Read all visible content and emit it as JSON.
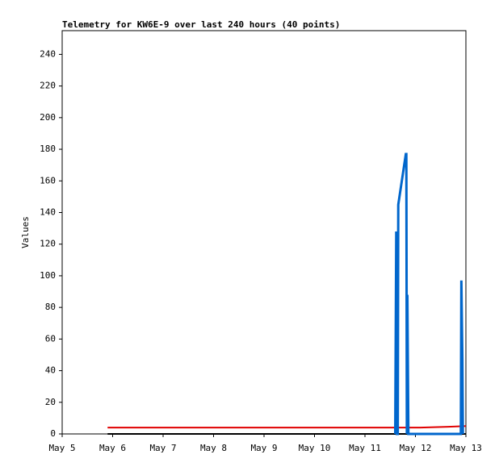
{
  "chart_data": {
    "type": "line",
    "title": "Telemetry for KW6E-9 over last 240 hours (40 points)",
    "y_label": "Values",
    "xlim": [
      5,
      13
    ],
    "xticks": [
      {
        "value": 5,
        "label": "May 5"
      },
      {
        "value": 6,
        "label": "May 6"
      },
      {
        "value": 7,
        "label": "May 7"
      },
      {
        "value": 8,
        "label": "May 8"
      },
      {
        "value": 9,
        "label": "May 9"
      },
      {
        "value": 10,
        "label": "May 10"
      },
      {
        "value": 11,
        "label": "May 11"
      },
      {
        "value": 12,
        "label": "May 12"
      },
      {
        "value": 13,
        "label": "May 13"
      }
    ],
    "ylim": [
      0,
      255
    ],
    "yticks": [
      0,
      20,
      40,
      60,
      80,
      100,
      120,
      140,
      160,
      180,
      200,
      220,
      240
    ],
    "series": [
      {
        "color": "#000000",
        "x": [
          5.9,
          13
        ],
        "values": [
          0,
          0
        ]
      },
      {
        "color": "#e00000",
        "x": [
          5.9,
          12.1,
          12.65,
          13
        ],
        "values": [
          4,
          4,
          4.5,
          5
        ]
      },
      {
        "color": "#0066cc",
        "x": [
          11.6,
          11.62,
          11.63,
          11.65,
          11.66,
          11.81,
          11.82,
          11.83,
          11.84,
          11.86,
          12.9,
          12.91,
          12.93,
          12.94
        ],
        "values": [
          0,
          128,
          0,
          0,
          145,
          177,
          177,
          0,
          88,
          0,
          0,
          97,
          48,
          0
        ]
      }
    ]
  }
}
